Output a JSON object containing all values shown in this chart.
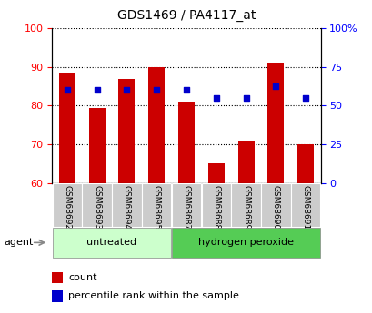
{
  "title": "GDS1469 / PA4117_at",
  "categories": [
    "GSM68692",
    "GSM68693",
    "GSM68694",
    "GSM68695",
    "GSM68687",
    "GSM68688",
    "GSM68689",
    "GSM68690",
    "GSM68691"
  ],
  "bar_values": [
    88.5,
    79.5,
    87.0,
    90.0,
    81.0,
    65.0,
    71.0,
    91.0,
    70.0
  ],
  "bar_bottom": 60,
  "dot_values_left_axis": [
    84.0,
    84.0,
    84.0,
    84.0,
    84.0,
    82.0,
    82.0,
    85.0,
    82.0
  ],
  "ylim_left": [
    60,
    100
  ],
  "ylim_right": [
    0,
    100
  ],
  "yticks_left": [
    60,
    70,
    80,
    90,
    100
  ],
  "yticks_right": [
    0,
    25,
    50,
    75,
    100
  ],
  "ytick_right_labels": [
    "0",
    "25",
    "50",
    "75",
    "100%"
  ],
  "bar_color": "#cc0000",
  "dot_color": "#0000cc",
  "bar_width": 0.55,
  "groups": [
    {
      "label": "untreated",
      "start": 0,
      "end": 4,
      "color": "#ccffcc"
    },
    {
      "label": "hydrogen peroxide",
      "start": 4,
      "end": 9,
      "color": "#55cc55"
    }
  ],
  "agent_label": "agent",
  "legend_count_label": "count",
  "legend_pct_label": "percentile rank within the sample",
  "tick_area_color": "#cccccc",
  "fig_width": 4.1,
  "fig_height": 3.45,
  "dpi": 100
}
